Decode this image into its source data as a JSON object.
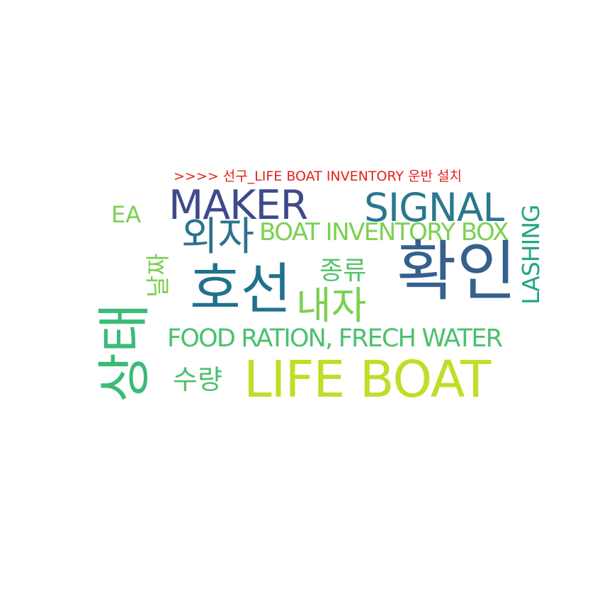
{
  "title": {
    "text": ">>>> 선구_LIFE BOAT INVENTORY 운반 설치",
    "color": "#e3211c"
  },
  "words": [
    {
      "id": "maker",
      "text": "MAKER",
      "color": "#3e4a89"
    },
    {
      "id": "signal",
      "text": "SIGNAL",
      "color": "#2a788e"
    },
    {
      "id": "ea",
      "text": "EA",
      "color": "#7ad151"
    },
    {
      "id": "oeja",
      "text": "외자",
      "color": "#2c728e"
    },
    {
      "id": "boat-inventory-box",
      "text": "BOAT INVENTORY BOX",
      "color": "#7ad151"
    },
    {
      "id": "lashing",
      "text": "LASHING",
      "color": "#25a584"
    },
    {
      "id": "nalzza",
      "text": "날짜",
      "color": "#7ad151"
    },
    {
      "id": "hoseon",
      "text": "호선",
      "color": "#21718e"
    },
    {
      "id": "jongryu",
      "text": "종류",
      "color": "#52c569"
    },
    {
      "id": "hwagin",
      "text": "확인",
      "color": "#35608d"
    },
    {
      "id": "naeja",
      "text": "내자",
      "color": "#7ad151"
    },
    {
      "id": "sangtae",
      "text": "상태",
      "color": "#3bbb75"
    },
    {
      "id": "food-ration",
      "text": "FOOD RATION, FRECH WATER",
      "color": "#4ac16d"
    },
    {
      "id": "suryang",
      "text": "수량",
      "color": "#4ac16d"
    },
    {
      "id": "life-boat",
      "text": "LIFE BOAT",
      "color": "#bddf26"
    }
  ]
}
